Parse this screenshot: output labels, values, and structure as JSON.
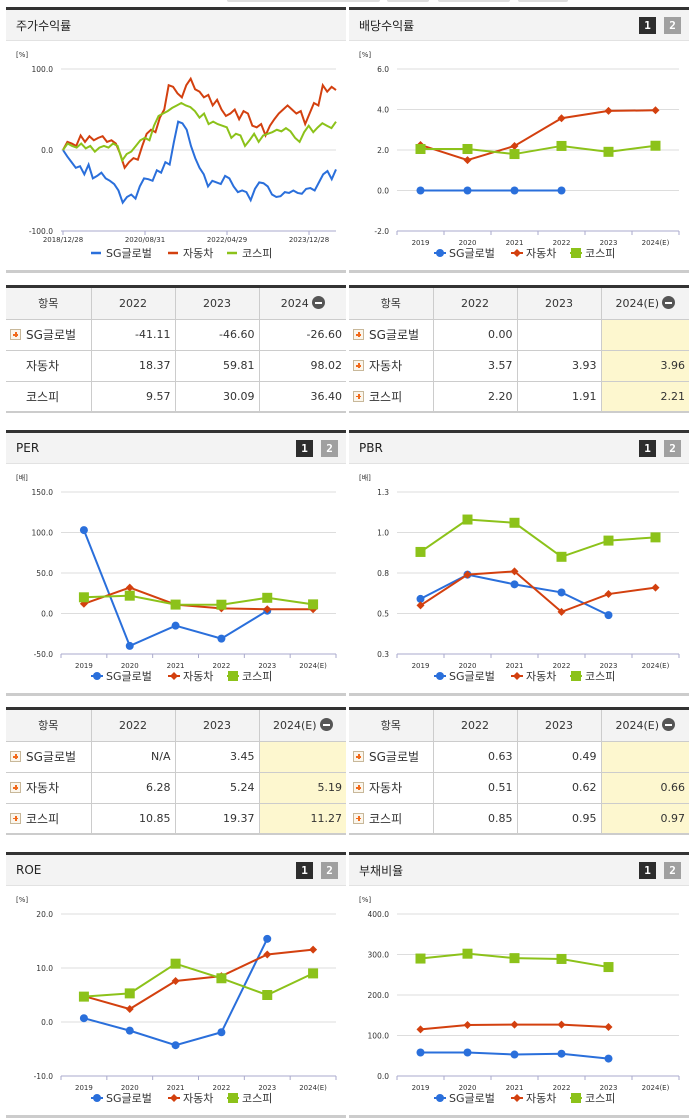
{
  "series_names": [
    "SG글로벌",
    "자동차",
    "코스피"
  ],
  "colors": {
    "sg": "#2a6fdb",
    "auto": "#d3400f",
    "kospi": "#8cc21a",
    "estimate_bg": "#fdf7cf"
  },
  "pager": {
    "p1": "1",
    "p2": "2"
  },
  "panels": {
    "stock_return": {
      "title": "주가수익률",
      "unit": "[%]",
      "table": {
        "headers": [
          "항목",
          "2022",
          "2023",
          "2024"
        ],
        "rows": [
          {
            "name": "SG글로벌",
            "values": [
              "-41.11",
              "-46.60",
              "-26.60"
            ]
          },
          {
            "name": "자동차",
            "values": [
              "18.37",
              "59.81",
              "98.02"
            ]
          },
          {
            "name": "코스피",
            "values": [
              "9.57",
              "30.09",
              "36.40"
            ]
          }
        ]
      }
    },
    "dividend": {
      "title": "배당수익률",
      "unit": "[%]",
      "table": {
        "headers": [
          "항목",
          "2022",
          "2023",
          "2024(E)"
        ],
        "rows": [
          {
            "name": "SG글로벌",
            "values": [
              "0.00",
              "",
              ""
            ]
          },
          {
            "name": "자동차",
            "values": [
              "3.57",
              "3.93",
              "3.96"
            ]
          },
          {
            "name": "코스피",
            "values": [
              "2.20",
              "1.91",
              "2.21"
            ]
          }
        ]
      }
    },
    "per": {
      "title": "PER",
      "unit": "[배]",
      "table": {
        "headers": [
          "항목",
          "2022",
          "2023",
          "2024(E)"
        ],
        "rows": [
          {
            "name": "SG글로벌",
            "values": [
              "N/A",
              "3.45",
              ""
            ]
          },
          {
            "name": "자동차",
            "values": [
              "6.28",
              "5.24",
              "5.19"
            ]
          },
          {
            "name": "코스피",
            "values": [
              "10.85",
              "19.37",
              "11.27"
            ]
          }
        ]
      }
    },
    "pbr": {
      "title": "PBR",
      "unit": "[배]",
      "table": {
        "headers": [
          "항목",
          "2022",
          "2023",
          "2024(E)"
        ],
        "rows": [
          {
            "name": "SG글로벌",
            "values": [
              "0.63",
              "0.49",
              ""
            ]
          },
          {
            "name": "자동차",
            "values": [
              "0.51",
              "0.62",
              "0.66"
            ]
          },
          {
            "name": "코스피",
            "values": [
              "0.85",
              "0.95",
              "0.97"
            ]
          }
        ]
      }
    },
    "roe": {
      "title": "ROE",
      "unit": "[%]"
    },
    "debt": {
      "title": "부채비율",
      "unit": "[%]"
    }
  },
  "chart_data": [
    {
      "id": "stock_return",
      "type": "line",
      "title": "주가수익률",
      "ylabel": "[%]",
      "ylim": [
        -100,
        100
      ],
      "yticks": [
        "100.0",
        "0.0",
        "-100.0"
      ],
      "xticks": [
        "2018/12/28",
        "2020/08/31",
        "2022/04/29",
        "2023/12/28"
      ],
      "legend_position": "bottom",
      "grid": true,
      "series": [
        {
          "name": "SG글로벌",
          "values": [
            0,
            -8,
            -15,
            -22,
            -20,
            -30,
            -18,
            -35,
            -32,
            -28,
            -35,
            -38,
            -42,
            -50,
            -65,
            -58,
            -55,
            -60,
            -45,
            -35,
            -36,
            -38,
            -25,
            -28,
            -15,
            -18,
            10,
            35,
            33,
            25,
            5,
            -10,
            -22,
            -30,
            -45,
            -38,
            -40,
            -42,
            -32,
            -35,
            -45,
            -52,
            -50,
            -52,
            -62,
            -48,
            -40,
            -41,
            -45,
            -55,
            -58,
            -57,
            -52,
            -53,
            -50,
            -53,
            -54,
            -48,
            -47,
            -50,
            -40,
            -30,
            -26,
            -36,
            -24
          ]
        },
        {
          "name": "자동차",
          "values": [
            0,
            10,
            8,
            5,
            18,
            10,
            17,
            12,
            15,
            17,
            10,
            12,
            8,
            -5,
            -22,
            -15,
            -10,
            -12,
            5,
            20,
            25,
            22,
            40,
            50,
            80,
            78,
            70,
            65,
            80,
            88,
            75,
            72,
            65,
            68,
            55,
            62,
            50,
            42,
            45,
            50,
            38,
            48,
            45,
            30,
            28,
            32,
            18,
            30,
            38,
            45,
            50,
            55,
            50,
            45,
            48,
            32,
            45,
            58,
            55,
            80,
            72,
            78,
            74
          ]
        },
        {
          "name": "코스피",
          "values": [
            0,
            8,
            5,
            3,
            8,
            2,
            5,
            -2,
            3,
            5,
            3,
            8,
            5,
            -13,
            -5,
            -2,
            5,
            12,
            15,
            12,
            30,
            42,
            45,
            48,
            52,
            55,
            58,
            55,
            53,
            48,
            40,
            45,
            32,
            35,
            32,
            30,
            28,
            15,
            20,
            18,
            5,
            12,
            20,
            10,
            18,
            20,
            22,
            25,
            23,
            27,
            23,
            15,
            10,
            22,
            30,
            22,
            28,
            33,
            30,
            27,
            35
          ]
        }
      ]
    },
    {
      "id": "dividend",
      "type": "line",
      "title": "배당수익률",
      "ylabel": "[%]",
      "ylim": [
        -2,
        6
      ],
      "yticks": [
        "6.0",
        "4.0",
        "2.0",
        "0.0",
        "-2.0"
      ],
      "categories": [
        "2019",
        "2020",
        "2021",
        "2022",
        "2023",
        "2024(E)"
      ],
      "series": [
        {
          "name": "SG글로벌",
          "values": [
            0.0,
            0.0,
            0.0,
            0.0,
            null,
            null
          ]
        },
        {
          "name": "자동차",
          "values": [
            2.25,
            1.5,
            2.2,
            3.57,
            3.93,
            3.96
          ]
        },
        {
          "name": "코스피",
          "values": [
            2.05,
            2.05,
            1.8,
            2.2,
            1.91,
            2.21
          ]
        }
      ]
    },
    {
      "id": "per",
      "type": "line",
      "title": "PER",
      "ylabel": "[배]",
      "ylim": [
        -50,
        150
      ],
      "yticks": [
        "150.0",
        "100.0",
        "50.0",
        "0.0",
        "-50.0"
      ],
      "categories": [
        "2019",
        "2020",
        "2021",
        "2022",
        "2023",
        "2024(E)"
      ],
      "series": [
        {
          "name": "SG글로벌",
          "values": [
            103,
            -40,
            -15,
            -31,
            3.45,
            null
          ]
        },
        {
          "name": "자동차",
          "values": [
            12,
            32,
            11,
            6.28,
            5.24,
            5.19
          ]
        },
        {
          "name": "코스피",
          "values": [
            20,
            22,
            11,
            10.85,
            19.37,
            11.27
          ]
        }
      ]
    },
    {
      "id": "pbr",
      "type": "line",
      "title": "PBR",
      "ylabel": "[배]",
      "ylim": [
        0.25,
        1.25
      ],
      "yticks": [
        "1.3",
        "1.0",
        "0.8",
        "0.5",
        "0.3"
      ],
      "categories": [
        "2019",
        "2020",
        "2021",
        "2022",
        "2023",
        "2024(E)"
      ],
      "series": [
        {
          "name": "SG글로벌",
          "values": [
            0.59,
            0.74,
            0.68,
            0.63,
            0.49,
            null
          ]
        },
        {
          "name": "자동차",
          "values": [
            0.55,
            0.74,
            0.76,
            0.51,
            0.62,
            0.66
          ]
        },
        {
          "name": "코스피",
          "values": [
            0.88,
            1.08,
            1.06,
            0.85,
            0.95,
            0.97
          ]
        }
      ]
    },
    {
      "id": "roe",
      "type": "line",
      "title": "ROE",
      "ylabel": "[%]",
      "ylim": [
        -10,
        20
      ],
      "yticks": [
        "20.0",
        "10.0",
        "0.0",
        "-10.0"
      ],
      "categories": [
        "2019",
        "2020",
        "2021",
        "2022",
        "2023",
        "2024(E)"
      ],
      "series": [
        {
          "name": "SG글로벌",
          "values": [
            0.7,
            -1.6,
            -4.3,
            -1.9,
            15.4,
            null
          ]
        },
        {
          "name": "자동차",
          "values": [
            4.8,
            2.4,
            7.6,
            8.5,
            12.5,
            13.4
          ]
        },
        {
          "name": "코스피",
          "values": [
            4.7,
            5.3,
            10.8,
            8.1,
            5.0,
            9.0
          ]
        }
      ]
    },
    {
      "id": "debt",
      "type": "line",
      "title": "부채비율",
      "ylabel": "[%]",
      "ylim": [
        0,
        400
      ],
      "yticks": [
        "400.0",
        "300.0",
        "200.0",
        "100.0",
        "0.0"
      ],
      "categories": [
        "2019",
        "2020",
        "2021",
        "2022",
        "2023",
        "2024(E)"
      ],
      "series": [
        {
          "name": "SG글로벌",
          "values": [
            58,
            58,
            53,
            55,
            43,
            null
          ]
        },
        {
          "name": "자동차",
          "values": [
            115,
            126,
            127,
            127,
            121,
            null
          ]
        },
        {
          "name": "코스피",
          "values": [
            290,
            302,
            291,
            289,
            269,
            null
          ]
        }
      ]
    }
  ]
}
